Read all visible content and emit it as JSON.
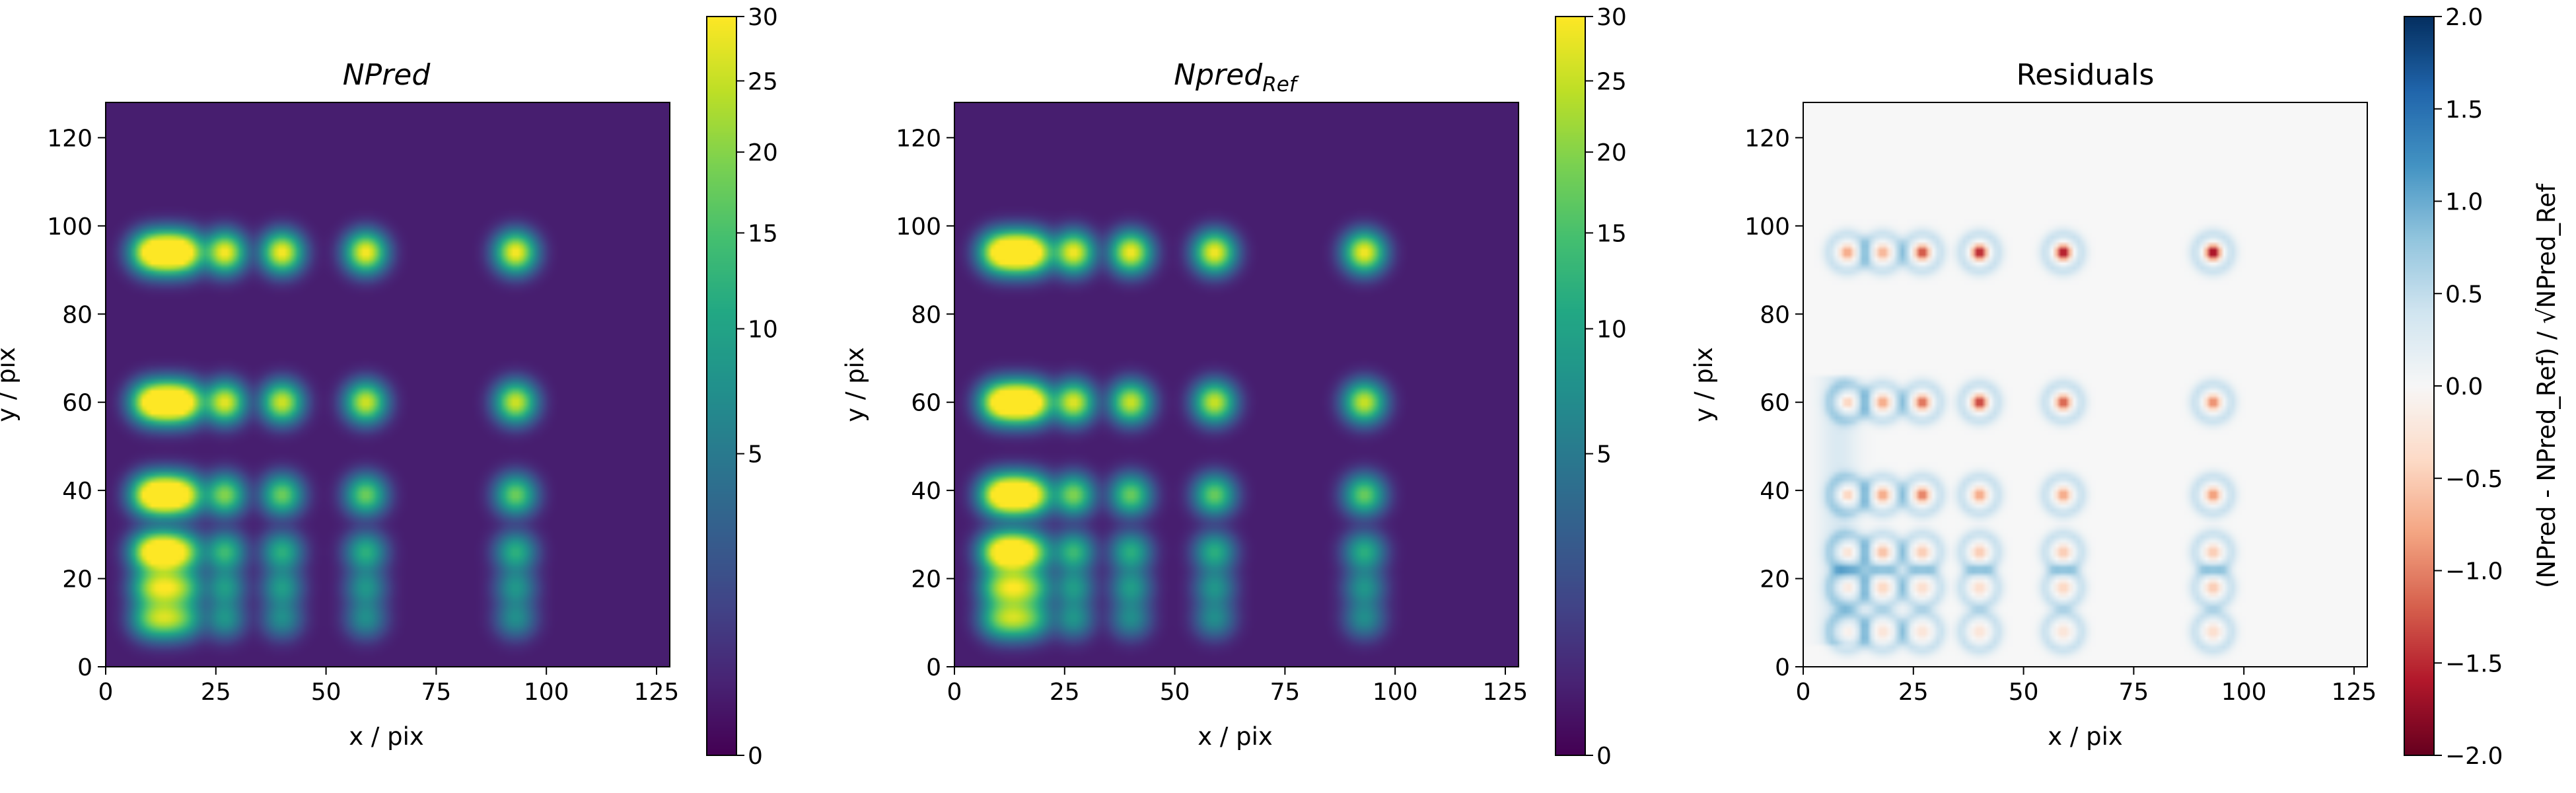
{
  "chart_data": [
    {
      "type": "heatmap",
      "title": "NPred",
      "title_style": "italic",
      "xlabel": "x / pix",
      "ylabel": "y / pix",
      "xlim": [
        0,
        128
      ],
      "ylim": [
        0,
        128
      ],
      "xticks": [
        "0",
        "25",
        "50",
        "75",
        "100",
        "125"
      ],
      "yticks": [
        "0",
        "20",
        "40",
        "60",
        "80",
        "100",
        "120"
      ],
      "colormap": "viridis",
      "colorbar": {
        "ticks": [
          "0",
          "5",
          "10",
          "15",
          "20",
          "25",
          "30"
        ],
        "range": [
          0,
          30
        ],
        "scale": "sqrt",
        "label": ""
      }
    },
    {
      "type": "heatmap",
      "title": "Npred",
      "title_subscript": "Ref",
      "title_style": "italic",
      "xlabel": "x / pix",
      "ylabel": "y / pix",
      "xlim": [
        0,
        128
      ],
      "ylim": [
        0,
        128
      ],
      "xticks": [
        "0",
        "25",
        "50",
        "75",
        "100",
        "125"
      ],
      "yticks": [
        "0",
        "20",
        "40",
        "60",
        "80",
        "100",
        "120"
      ],
      "colormap": "viridis",
      "colorbar": {
        "ticks": [
          "0",
          "5",
          "10",
          "15",
          "20",
          "25",
          "30"
        ],
        "range": [
          0,
          30
        ],
        "scale": "sqrt",
        "label": ""
      }
    },
    {
      "type": "heatmap",
      "title": "Residuals",
      "xlabel": "x / pix",
      "ylabel": "y / pix",
      "xlim": [
        0,
        128
      ],
      "ylim": [
        0,
        128
      ],
      "xticks": [
        "0",
        "25",
        "50",
        "75",
        "100",
        "125"
      ],
      "yticks": [
        "0",
        "20",
        "40",
        "60",
        "80",
        "100",
        "120"
      ],
      "colormap": "RdBu",
      "colorbar": {
        "ticks": [
          "2.0",
          "1.5",
          "1.0",
          "0.5",
          "0.0",
          "−0.5",
          "−1.0",
          "−1.5",
          "−2.0"
        ],
        "range": [
          -2,
          2
        ],
        "label": "(NPred - NPred_Ref) / √NPred_Ref"
      }
    }
  ],
  "sources": {
    "columns_x": [
      10,
      18,
      27,
      40,
      59,
      93
    ],
    "rows": [
      {
        "y": 94,
        "amps": [
          30,
          30,
          30,
          30,
          30,
          30
        ]
      },
      {
        "y": 60,
        "amps": [
          30,
          30,
          28,
          26,
          26,
          26
        ]
      },
      {
        "y": 39,
        "amps": [
          30,
          24,
          20,
          18,
          18,
          18
        ]
      },
      {
        "y": 26,
        "amps": [
          28,
          16,
          14,
          12,
          12,
          12
        ]
      },
      {
        "y": 18,
        "amps": [
          16,
          12,
          9,
          9,
          8,
          8
        ]
      },
      {
        "y": 11,
        "amps": [
          14,
          10,
          8,
          7,
          7,
          7
        ]
      }
    ],
    "residual_rows": [
      {
        "y": 94,
        "amps": [
          -0.9,
          -0.8,
          -1.5,
          -1.8,
          -1.9,
          -2.0
        ]
      },
      {
        "y": 60,
        "amps": [
          -0.8,
          -0.9,
          -1.3,
          -1.6,
          -1.4,
          -1.1
        ]
      },
      {
        "y": 39,
        "amps": [
          -0.8,
          -0.9,
          -1.2,
          -0.9,
          -0.9,
          -1.0
        ]
      },
      {
        "y": 26,
        "amps": [
          -0.6,
          -0.7,
          -0.6,
          -0.6,
          -0.6,
          -0.6
        ]
      },
      {
        "y": 18,
        "amps": [
          -0.5,
          -0.5,
          -0.4,
          -0.4,
          -0.5,
          -0.6
        ]
      },
      {
        "y": 8,
        "amps": [
          -0.4,
          -0.3,
          -0.3,
          -0.3,
          -0.3,
          -0.4
        ]
      }
    ]
  }
}
